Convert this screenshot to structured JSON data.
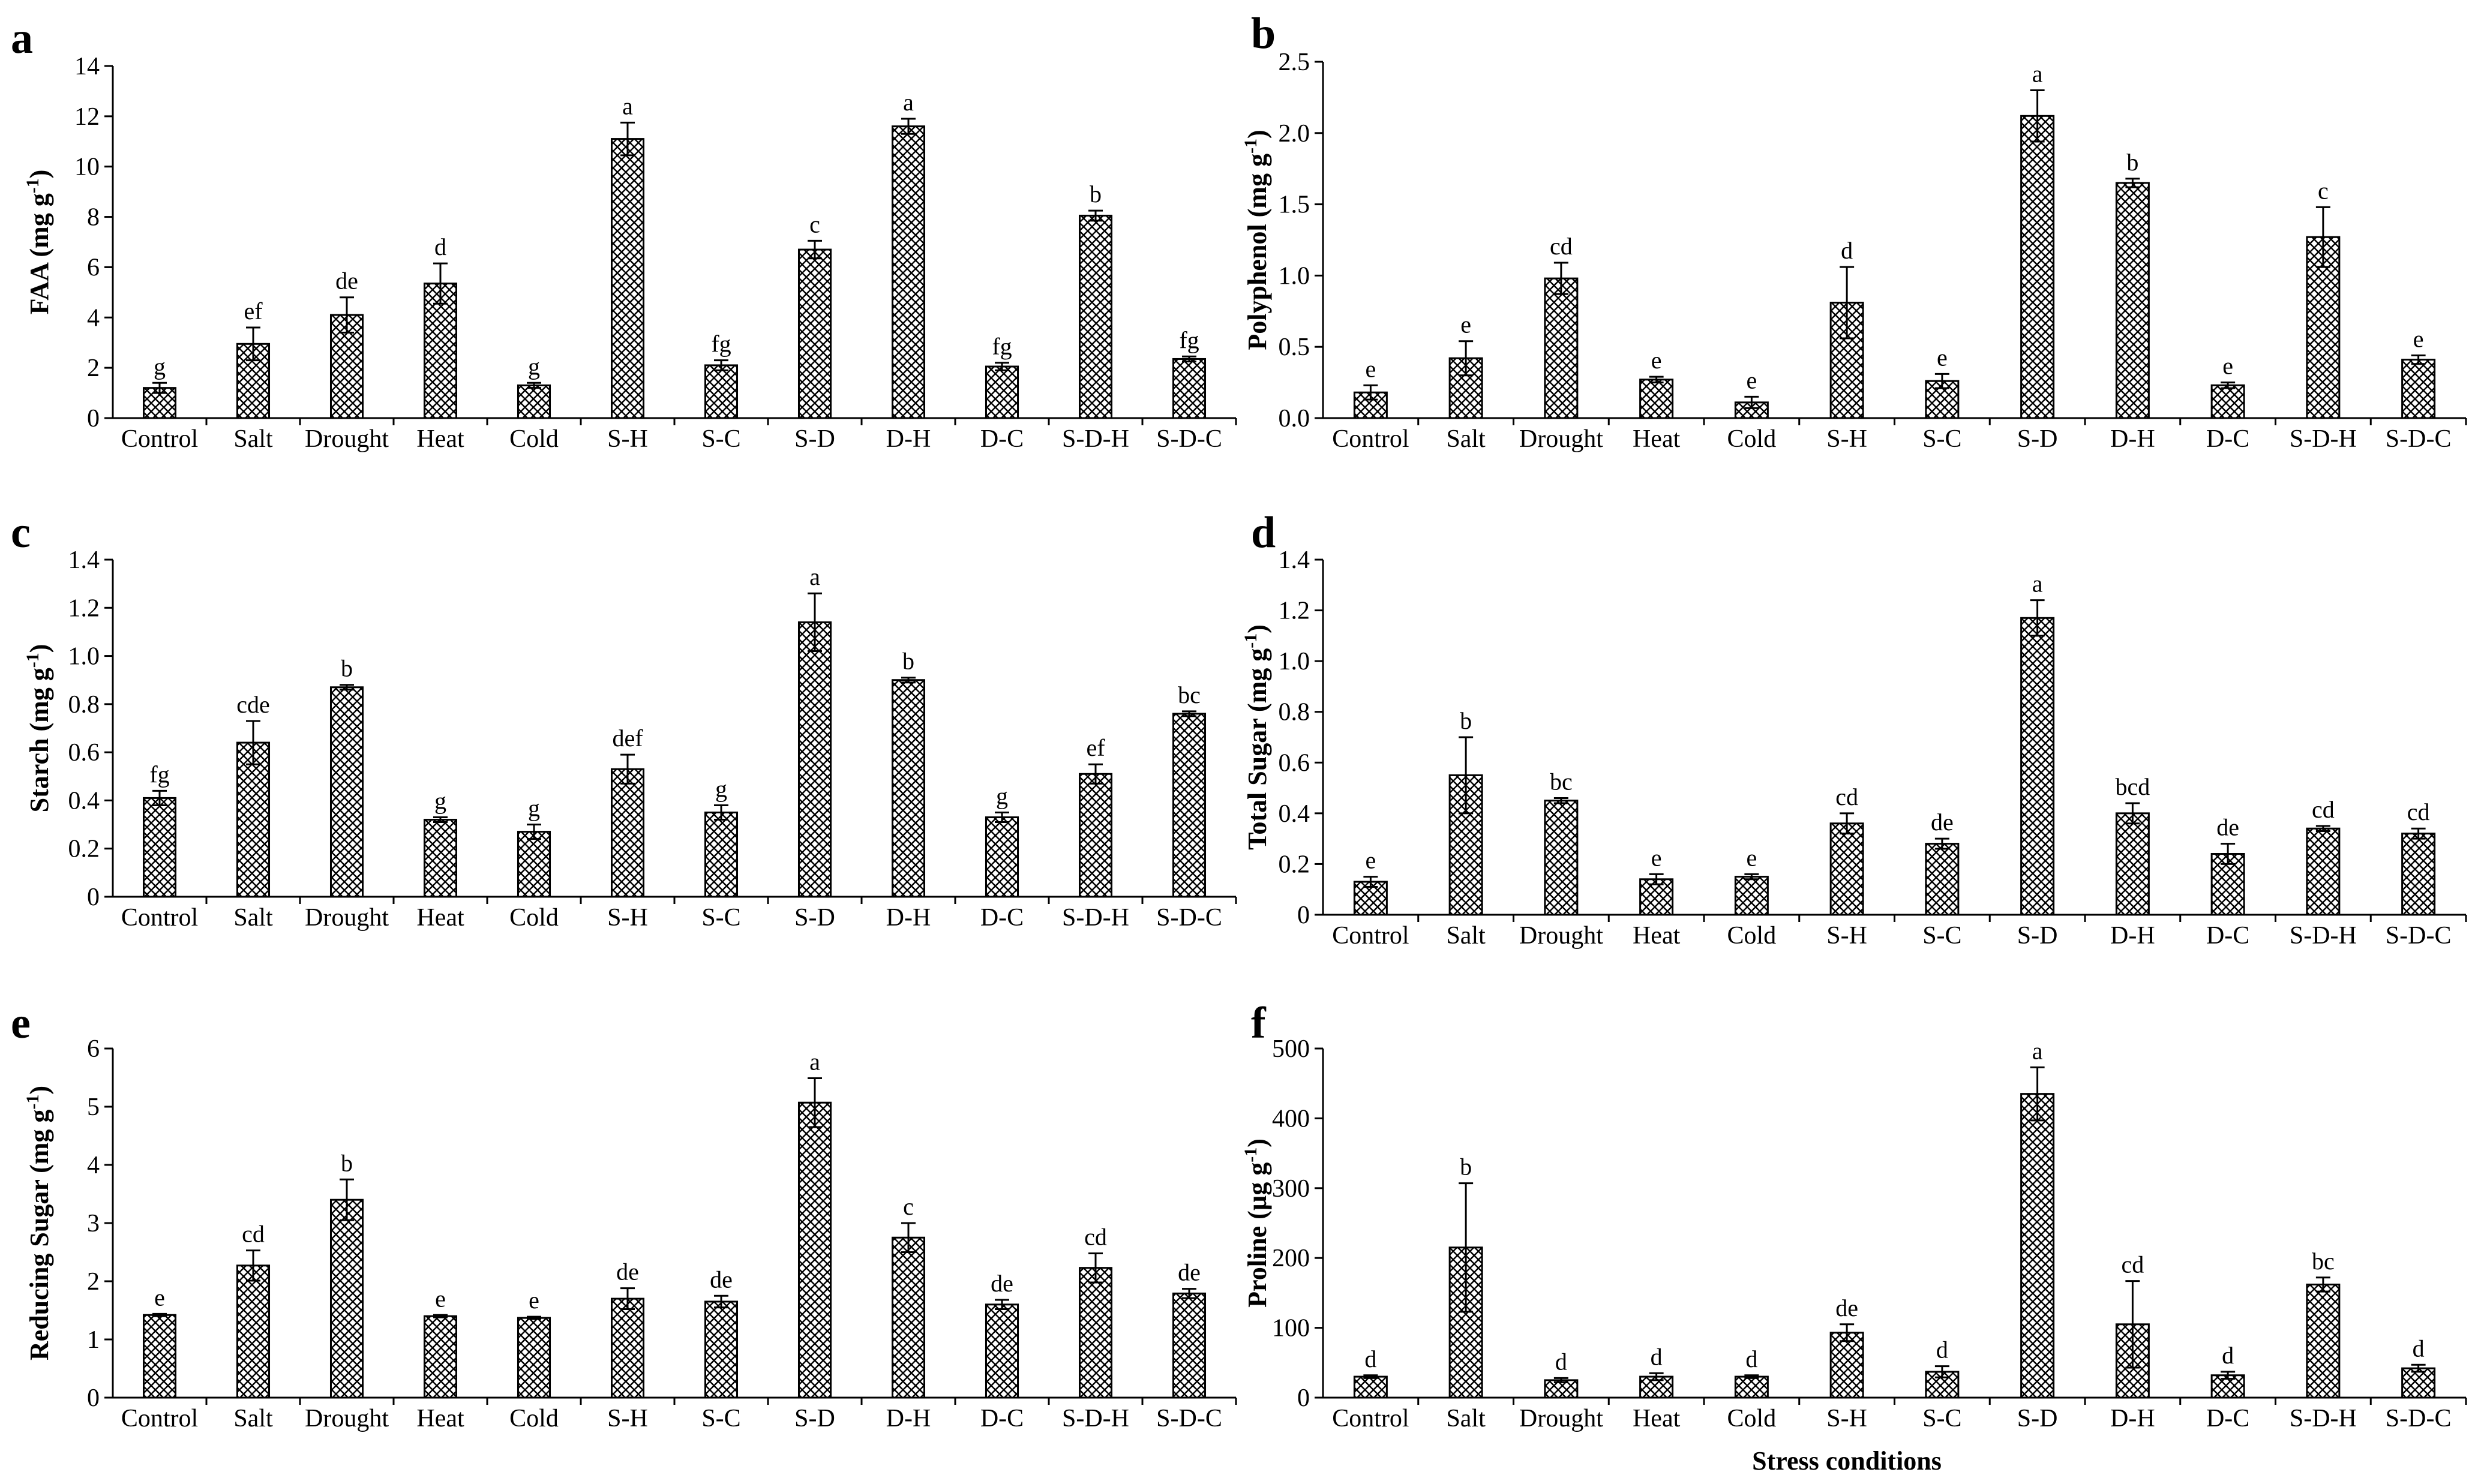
{
  "figure": {
    "x_title": "Stress conditions",
    "categories": [
      "Control",
      "Salt",
      "Drought",
      "Heat",
      "Cold",
      "S-H",
      "S-C",
      "S-D",
      "D-H",
      "D-C",
      "S-D-H",
      "S-D-C"
    ],
    "bar_pattern": "crosshatch",
    "colors": {
      "bar_fill": "#ffffff",
      "hatch": "#000000",
      "axis": "#000000"
    }
  },
  "chart_data": [
    {
      "type": "bar",
      "panel": "a",
      "ylabel_main": "FAA (mg g",
      "ylabel_sup": "-1",
      "ylabel_close": ")",
      "ylim": [
        0,
        14
      ],
      "yticks": [
        "0",
        "2",
        "4",
        "6",
        "8",
        "10",
        "12",
        "14"
      ],
      "values": [
        1.2,
        2.95,
        4.1,
        5.35,
        1.3,
        11.1,
        2.1,
        6.7,
        11.6,
        2.05,
        8.05,
        2.35
      ],
      "errors": [
        0.2,
        0.65,
        0.7,
        0.8,
        0.1,
        0.65,
        0.2,
        0.35,
        0.3,
        0.15,
        0.2,
        0.1
      ],
      "letters": [
        "g",
        "ef",
        "de",
        "d",
        "g",
        "a",
        "fg",
        "c",
        "a",
        "fg",
        "b",
        "fg"
      ]
    },
    {
      "type": "bar",
      "panel": "b",
      "ylabel_main": "Polyphenol (mg g",
      "ylabel_sup": "-1",
      "ylabel_close": ")",
      "ylim": [
        0,
        2.5
      ],
      "yticks": [
        "0.0",
        "0.5",
        "1.0",
        "1.5",
        "2.0",
        "2.5"
      ],
      "values": [
        0.18,
        0.42,
        0.98,
        0.27,
        0.11,
        0.81,
        0.26,
        2.12,
        1.65,
        0.23,
        1.27,
        0.41
      ],
      "errors": [
        0.05,
        0.12,
        0.11,
        0.02,
        0.04,
        0.25,
        0.05,
        0.18,
        0.03,
        0.02,
        0.21,
        0.03
      ],
      "letters": [
        "e",
        "e",
        "cd",
        "e",
        "e",
        "d",
        "e",
        "a",
        "b",
        "e",
        "c",
        "e"
      ]
    },
    {
      "type": "bar",
      "panel": "c",
      "ylabel_main": "Starch (mg g",
      "ylabel_sup": "-1",
      "ylabel_close": ")",
      "ylim": [
        0,
        1.4
      ],
      "yticks": [
        "0",
        "0.2",
        "0.4",
        "0.6",
        "0.8",
        "1.0",
        "1.2",
        "1.4"
      ],
      "values": [
        0.41,
        0.64,
        0.87,
        0.32,
        0.27,
        0.53,
        0.35,
        1.14,
        0.9,
        0.33,
        0.51,
        0.76
      ],
      "errors": [
        0.03,
        0.09,
        0.01,
        0.01,
        0.03,
        0.06,
        0.03,
        0.12,
        0.01,
        0.02,
        0.04,
        0.01
      ],
      "letters": [
        "fg",
        "cde",
        "b",
        "g",
        "g",
        "def",
        "g",
        "a",
        "b",
        "g",
        "ef",
        "bc"
      ]
    },
    {
      "type": "bar",
      "panel": "d",
      "ylabel_main": "Total Sugar (mg g",
      "ylabel_sup": "-1",
      "ylabel_close": ")",
      "ylim": [
        0,
        1.4
      ],
      "yticks": [
        "0",
        "0.2",
        "0.4",
        "0.6",
        "0.8",
        "1.0",
        "1.2",
        "1.4"
      ],
      "values": [
        0.13,
        0.55,
        0.45,
        0.14,
        0.15,
        0.36,
        0.28,
        1.17,
        0.4,
        0.24,
        0.34,
        0.32
      ],
      "errors": [
        0.02,
        0.15,
        0.01,
        0.02,
        0.01,
        0.04,
        0.02,
        0.07,
        0.04,
        0.04,
        0.01,
        0.02
      ],
      "letters": [
        "e",
        "b",
        "bc",
        "e",
        "e",
        "cd",
        "de",
        "a",
        "bcd",
        "de",
        "cd",
        "cd"
      ]
    },
    {
      "type": "bar",
      "panel": "e",
      "ylabel_main": "Reducing Sugar (mg g",
      "ylabel_sup": "-1",
      "ylabel_close": ")",
      "ylim": [
        0,
        6
      ],
      "yticks": [
        "0",
        "1",
        "2",
        "3",
        "4",
        "5",
        "6"
      ],
      "values": [
        1.42,
        2.27,
        3.4,
        1.4,
        1.37,
        1.7,
        1.65,
        5.07,
        2.75,
        1.6,
        2.23,
        1.79
      ],
      "errors": [
        0.02,
        0.26,
        0.35,
        0.02,
        0.02,
        0.18,
        0.1,
        0.42,
        0.25,
        0.08,
        0.25,
        0.08
      ],
      "letters": [
        "e",
        "cd",
        "b",
        "e",
        "e",
        "de",
        "de",
        "a",
        "c",
        "de",
        "cd",
        "de"
      ]
    },
    {
      "type": "bar",
      "panel": "f",
      "ylabel_main": "Proline  (µg g",
      "ylabel_sup": "-1",
      "ylabel_close": ")",
      "ylim": [
        0,
        500
      ],
      "yticks": [
        "0",
        "100",
        "200",
        "300",
        "400",
        "500"
      ],
      "values": [
        30,
        215,
        25,
        30,
        30,
        93,
        37,
        435,
        105,
        32,
        162,
        42
      ],
      "errors": [
        2,
        92,
        3,
        5,
        2,
        12,
        8,
        38,
        62,
        5,
        10,
        5
      ],
      "letters": [
        "d",
        "b",
        "d",
        "d",
        "d",
        "de",
        "d",
        "a",
        "cd",
        "d",
        "bc",
        "d"
      ]
    }
  ]
}
